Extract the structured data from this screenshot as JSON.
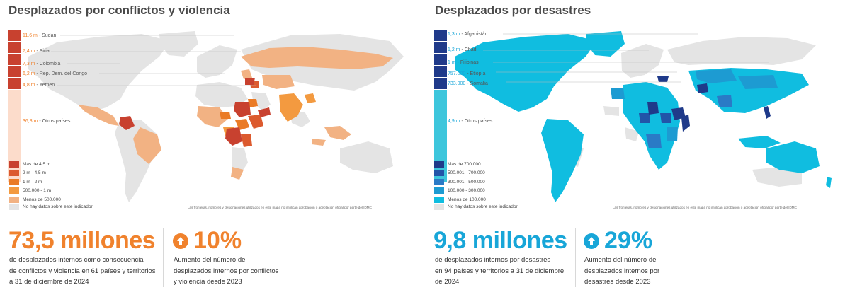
{
  "left": {
    "title": "Desplazados por conflictos y violencia",
    "callouts": [
      {
        "value": "11,6 m",
        "label": "Sudán"
      },
      {
        "value": "7,4 m",
        "label": "Siria"
      },
      {
        "value": "7,3 m",
        "label": "Colombia"
      },
      {
        "value": "6,2 m",
        "label": "Rep. Dem. del Congo"
      },
      {
        "value": "4,8 m",
        "label": "Yemen"
      },
      {
        "value": "36,3 m",
        "label": "Otros países"
      }
    ],
    "legend": [
      {
        "label": "Más de 4,5 m",
        "color": "#c8412f"
      },
      {
        "label": "2 m - 4,5 m",
        "color": "#dc5a2e"
      },
      {
        "label": "1 m - 2 m",
        "color": "#ea7b26"
      },
      {
        "label": "500.000 - 1 m",
        "color": "#f39a40"
      },
      {
        "label": "Menos de 500.000",
        "color": "#f2b283"
      }
    ],
    "nodata": "No hay datos sobre este indicador",
    "disclaimer": "Las fronteras, nombres y designaciones utilizados en este mapa no implican aprobación o aceptación oficial por parte del IDMC",
    "stat": "73,5 millones",
    "stat_desc": [
      "de desplazados internos como consecuencia",
      "de conflictos y violencia en 61 países y territorios",
      "a 31 de diciembre de 2024"
    ],
    "pct": "10%",
    "pct_desc": [
      "Aumento del número de",
      "desplazados internos por conflictos",
      "y violencia desde 2023"
    ],
    "accent": "#f0822d"
  },
  "right": {
    "title": "Desplazados por desastres",
    "callouts": [
      {
        "value": "1,3 m",
        "label": "Afganistán"
      },
      {
        "value": "1,2 m",
        "label": "Chad"
      },
      {
        "value": "1 m",
        "label": "Filipinas"
      },
      {
        "value": "757.000",
        "label": "Etiopía"
      },
      {
        "value": "733.000",
        "label": "Somalia"
      },
      {
        "value": "4,9 m",
        "label": "Otros países"
      }
    ],
    "legend": [
      {
        "label": "Más de 700.000",
        "color": "#1f3a8a"
      },
      {
        "label": "500.001 - 700.000",
        "color": "#2254a8"
      },
      {
        "label": "300.001 - 500.000",
        "color": "#2a7ac6"
      },
      {
        "label": "100.000 - 300.000",
        "color": "#1d9bd2"
      },
      {
        "label": "Menos de 100.000",
        "color": "#10bde0"
      }
    ],
    "nodata": "No hay datos sobre este indicador",
    "disclaimer": "Las fronteras, nombres y designaciones utilizados en este mapa no implican aprobación o aceptación oficial por parte del IDMC",
    "stat": "9,8 millones",
    "stat_desc": [
      "de desplazados internos por desastres",
      "en 94 países y territorios a 31 de diciembre",
      "de 2024"
    ],
    "pct": "29%",
    "pct_desc": [
      "Aumento del número de",
      "desplazados internos por",
      "desastres desde 2023"
    ],
    "accent": "#18a6d8"
  },
  "colors": {
    "nodata": "#e4e4e4",
    "title": "#4a4a4a"
  }
}
